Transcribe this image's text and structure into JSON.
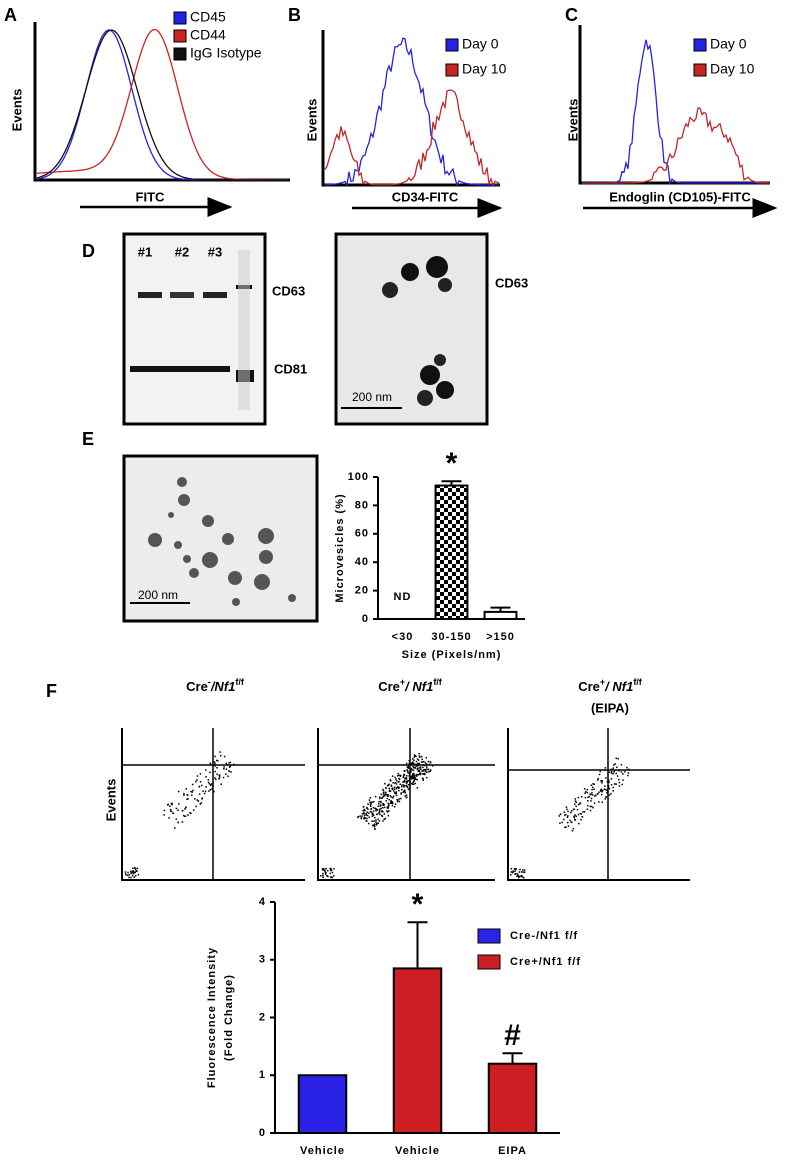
{
  "panel_labels": [
    "A",
    "B",
    "C",
    "D",
    "E",
    "F"
  ],
  "histograms": [
    {
      "ylabel": "Events",
      "xlabel": "FITC",
      "legend": [
        {
          "name": "CD45",
          "color": "#2323e6"
        },
        {
          "name": "CD44",
          "color": "#cc2222"
        },
        {
          "name": "IgG Isotype",
          "color": "#111111"
        }
      ]
    },
    {
      "ylabel": "Events",
      "xlabel": "CD34-FITC",
      "legend": [
        {
          "name": "Day 0",
          "color": "#2323e6"
        },
        {
          "name": "Day 10",
          "color": "#c02828"
        }
      ]
    },
    {
      "ylabel": "Events",
      "xlabel": "Endoglin (CD105)-FITC",
      "legend": [
        {
          "name": "Day 0",
          "color": "#2323e6"
        },
        {
          "name": "Day 10",
          "color": "#c02828"
        }
      ]
    }
  ],
  "western_blot": {
    "lanes": [
      "#1",
      "#2",
      "#3"
    ],
    "bands": [
      "CD63",
      "CD81"
    ]
  },
  "em_images": [
    {
      "label": "CD63",
      "scale": "200 nm"
    },
    {
      "scale": "200 nm"
    }
  ],
  "flow_plots": {
    "ylabel": "Events",
    "titles": [
      {
        "a": "Cre",
        "b": "-",
        "c": "/Nf1",
        "d": "f/f"
      },
      {
        "a": "Cre",
        "b": "+",
        "c": "/ Nf1",
        "d": "f/f"
      },
      {
        "a": "Cre",
        "b": "+",
        "c": "/ Nf1",
        "d": "f/f",
        "e": "(EIPA)"
      }
    ]
  },
  "chart_data": [
    {
      "type": "bar",
      "ylabel": "Microvesicles (%)",
      "xlabel": "Size (Pixels/nm)",
      "categories": [
        "<30",
        "30-150",
        ">150"
      ],
      "values": [
        null,
        94,
        5
      ],
      "errors": [
        null,
        3,
        3
      ],
      "value_labels": [
        "ND",
        null,
        null
      ],
      "significance": [
        null,
        "*",
        null
      ],
      "colors": [
        null,
        "checkered",
        "#ffffff"
      ],
      "ylim": [
        0,
        100
      ],
      "yticks": [
        0,
        20,
        40,
        60,
        80,
        100
      ]
    },
    {
      "type": "bar",
      "ylabel": [
        "Fluorescence Intensity",
        "(Fold Change)"
      ],
      "categories": [
        "Vehicle",
        "Vehicle",
        "EIPA"
      ],
      "series": [
        {
          "name": "Cre-/Nf1 f/f",
          "color": "#2b22e8",
          "values": [
            1.0,
            null,
            null
          ],
          "errors": [
            null,
            null,
            null
          ]
        },
        {
          "name": "Cre+/Nf1 f/f",
          "color": "#cc1f24",
          "values": [
            null,
            2.85,
            1.2
          ],
          "errors": [
            null,
            0.8,
            0.18
          ]
        }
      ],
      "significance": [
        null,
        "*",
        "#"
      ],
      "ylim": [
        0,
        4
      ],
      "yticks": [
        0,
        1,
        2,
        3,
        4
      ]
    }
  ]
}
